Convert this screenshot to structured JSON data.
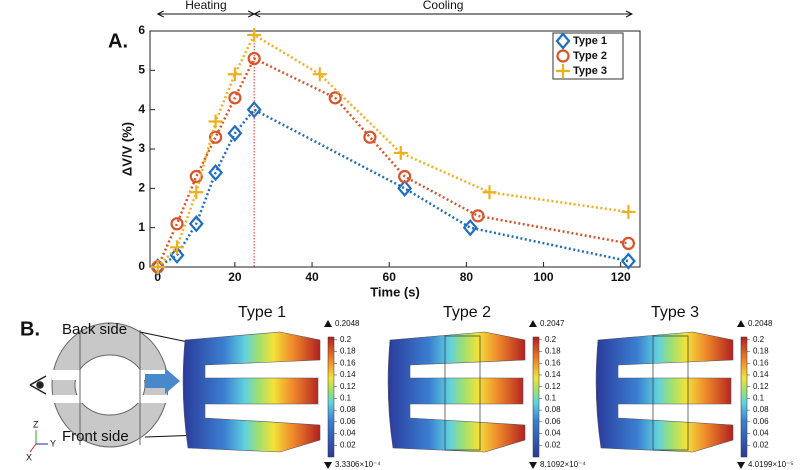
{
  "chart_data": {
    "type": "line",
    "panel_label": "A.",
    "xlabel": "Time (s)",
    "ylabel": "ΔV/V (%)",
    "xlim": [
      -2,
      125
    ],
    "ylim": [
      0,
      6
    ],
    "xticks": [
      0,
      20,
      40,
      60,
      80,
      100,
      120
    ],
    "yticks": [
      0,
      1,
      2,
      3,
      4,
      5,
      6
    ],
    "legend": "upper right",
    "vline": 25,
    "vline_color": "#e03030",
    "annotations": [
      "Heating",
      "Cooling"
    ],
    "series": [
      {
        "name": "Type 1",
        "color": "#1f6fbf",
        "marker": "diamond",
        "x": [
          0,
          5,
          10,
          15,
          20,
          25,
          64,
          81,
          122
        ],
        "values": [
          0,
          0.3,
          1.1,
          2.4,
          3.4,
          4.0,
          2.0,
          1.0,
          0.15
        ]
      },
      {
        "name": "Type 2",
        "color": "#d9542a",
        "marker": "circle",
        "x": [
          0,
          5,
          10,
          15,
          20,
          25,
          46,
          55,
          64,
          83,
          122
        ],
        "values": [
          0,
          1.1,
          2.3,
          3.3,
          4.3,
          5.3,
          4.3,
          3.3,
          2.3,
          1.3,
          0.6
        ]
      },
      {
        "name": "Type 3",
        "color": "#efb020",
        "marker": "plus",
        "x": [
          0,
          5,
          10,
          15,
          20,
          25,
          42,
          63,
          86,
          122
        ],
        "values": [
          0,
          0.5,
          1.9,
          3.7,
          4.9,
          5.9,
          4.9,
          2.9,
          1.9,
          1.4
        ]
      }
    ]
  },
  "panel_b": {
    "label": "B.",
    "back_side": "Back side",
    "front_side": "Front side",
    "triad": {
      "z": "Z",
      "y": "Y",
      "x": "X"
    },
    "models": [
      {
        "title": "Type 1",
        "max_label": "0.2048",
        "min_label": "3.3306×10⁻⁴",
        "colorbar_ticks": [
          0.2,
          0.18,
          0.16,
          0.14,
          0.12,
          0.1,
          0.08,
          0.06,
          0.04,
          0.02
        ]
      },
      {
        "title": "Type 2",
        "max_label": "0.2047",
        "min_label": "8.1092×10⁻⁴",
        "colorbar_ticks": [
          0.2,
          0.18,
          0.16,
          0.14,
          0.12,
          0.1,
          0.08,
          0.06,
          0.04,
          0.02
        ]
      },
      {
        "title": "Type 3",
        "max_label": "0.2048",
        "min_label": "4.0199×10⁻⁵",
        "colorbar_ticks": [
          0.2,
          0.18,
          0.16,
          0.14,
          0.12,
          0.1,
          0.08,
          0.06,
          0.04,
          0.02
        ]
      }
    ]
  }
}
